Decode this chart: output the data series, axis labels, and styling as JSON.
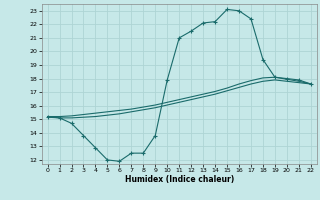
{
  "title": "",
  "xlabel": "Humidex (Indice chaleur)",
  "ylabel": "",
  "xlim": [
    -0.5,
    22.5
  ],
  "ylim": [
    11.7,
    23.5
  ],
  "xticks": [
    0,
    1,
    2,
    3,
    4,
    5,
    6,
    7,
    8,
    9,
    10,
    11,
    12,
    13,
    14,
    15,
    16,
    17,
    18,
    19,
    20,
    21,
    22
  ],
  "yticks": [
    12,
    13,
    14,
    15,
    16,
    17,
    18,
    19,
    20,
    21,
    22,
    23
  ],
  "bg_color": "#c6e8e8",
  "line_color": "#1a6b6b",
  "grid_color": "#aed4d4",
  "line1_x": [
    0,
    1,
    2,
    3,
    4,
    5,
    6,
    7,
    8,
    9,
    10,
    11,
    12,
    13,
    14,
    15,
    16,
    17,
    18,
    19,
    20,
    21,
    22
  ],
  "line1_y": [
    15.2,
    15.1,
    14.7,
    13.8,
    12.9,
    12.0,
    11.9,
    12.5,
    12.5,
    13.8,
    17.9,
    21.0,
    21.5,
    22.1,
    22.2,
    23.1,
    23.0,
    22.4,
    19.4,
    18.1,
    18.0,
    17.9,
    17.6
  ],
  "line2_x": [
    0,
    1,
    2,
    3,
    4,
    5,
    6,
    7,
    8,
    9,
    10,
    11,
    12,
    13,
    14,
    15,
    16,
    17,
    18,
    19,
    20,
    21,
    22
  ],
  "line2_y": [
    15.2,
    15.2,
    15.25,
    15.35,
    15.45,
    15.55,
    15.65,
    15.75,
    15.9,
    16.05,
    16.25,
    16.45,
    16.65,
    16.85,
    17.05,
    17.3,
    17.6,
    17.85,
    18.05,
    18.1,
    17.95,
    17.8,
    17.6
  ],
  "line3_x": [
    0,
    1,
    2,
    3,
    4,
    5,
    6,
    7,
    8,
    9,
    10,
    11,
    12,
    13,
    14,
    15,
    16,
    17,
    18,
    19,
    20,
    21,
    22
  ],
  "line3_y": [
    15.15,
    15.1,
    15.1,
    15.15,
    15.2,
    15.3,
    15.4,
    15.55,
    15.7,
    15.85,
    16.05,
    16.25,
    16.45,
    16.65,
    16.85,
    17.1,
    17.35,
    17.6,
    17.8,
    17.9,
    17.8,
    17.7,
    17.6
  ]
}
